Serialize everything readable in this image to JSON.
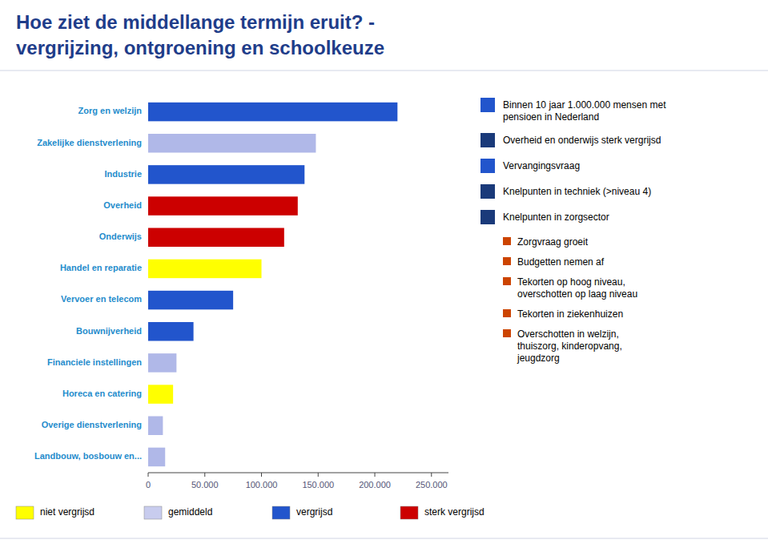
{
  "chart_data": {
    "type": "bar",
    "orientation": "horizontal",
    "title": "Hoe ziet de middellange termijn eruit? -",
    "subtitle": "vergrijzing, ontgroening en schoolkeuze",
    "categories": [
      "Landbouw, bosbouw en...",
      "Overige dienstverlening",
      "Horeca en catering",
      "Financiele instellingen",
      "Bouwnijverheid",
      "Vervoer en telecom",
      "Handel en reparatie",
      "Onderwijs",
      "Overheid",
      "Industrie",
      "Zakelijke dienstverlening",
      "Zorg en welzijn"
    ],
    "values": [
      15000,
      13000,
      22000,
      25000,
      40000,
      75000,
      100000,
      120000,
      132000,
      138000,
      148000,
      220000
    ],
    "colors": [
      "#b0b8e8",
      "#b0b8e8",
      "#ffff00",
      "#b0b8e8",
      "#2255cc",
      "#2255cc",
      "#ffff00",
      "#cc0000",
      "#cc0000",
      "#2255cc",
      "#b0b8e8",
      "#2255cc"
    ],
    "xlim": [
      0,
      265000
    ],
    "xticks": [
      0,
      {
        "value": 50000,
        "label": "50.000"
      },
      {
        "value": 100000,
        "label": "100.000"
      },
      {
        "value": 150000,
        "label": "150.000"
      },
      {
        "value": 200000,
        "label": "200.000"
      },
      {
        "value": 250000,
        "label": "250.000"
      }
    ],
    "grid": false,
    "annotations": [
      {
        "text": [
          "Binnen 10 jaar 1.000.000 mensen met",
          "pensioen in Nederland"
        ],
        "color": "#2255cc"
      },
      {
        "text": [
          "Overheid en onderwijs sterk vergrijsd"
        ],
        "color": "#1a3a7a"
      },
      {
        "text": [
          "Vervangingsvraag"
        ],
        "color": "#2255cc"
      },
      {
        "text": [
          "Knelpunten in techniek (>niveau 4)"
        ],
        "color": "#1a3a7a"
      },
      {
        "text": [
          "Knelpunten in zorgsector"
        ],
        "color": "#1a3a7a",
        "items": [
          {
            "text": [
              "Zorgvraag groeit"
            ],
            "color": "#cc4400"
          },
          {
            "text": [
              "Budgetten nemen af"
            ],
            "color": "#cc4400"
          },
          {
            "text": [
              "Tekorten op hoog niveau,",
              "overschotten op laag niveau"
            ],
            "color": "#cc4400"
          },
          {
            "text": [
              "Tekorten in ziekenhuizen"
            ],
            "color": "#cc4400"
          },
          {
            "text": [
              "Overschotten in welzijn,",
              "thuiszorg, kinderopvang,",
              "jeugdzorg"
            ],
            "color": "#cc4400"
          }
        ]
      }
    ],
    "legend": "bottom",
    "color_key": [
      {
        "label": "niet vergrijsd",
        "color": "#ffff00"
      },
      {
        "label": "gemiddeld",
        "color": "#c8ccee"
      },
      {
        "label": "vergrijsd",
        "color": "#2255cc"
      },
      {
        "label": "sterk vergrijsd",
        "color": "#cc0000"
      }
    ]
  }
}
